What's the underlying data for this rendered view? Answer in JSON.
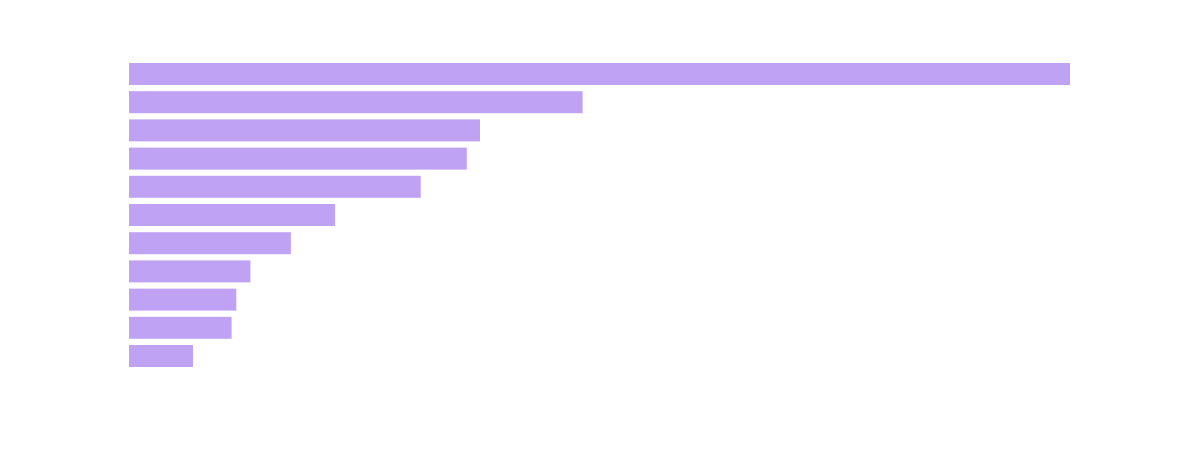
{
  "chart_data": {
    "type": "bar",
    "orientation": "horizontal",
    "sort": "descending",
    "bar_color": "#c0a2f5",
    "values": [
      100,
      48.2,
      37.3,
      35.9,
      31,
      21.9,
      17.2,
      12.9,
      11.4,
      10.9,
      6.8
    ],
    "xlim": [
      0,
      100
    ],
    "grid": false,
    "legend": "none"
  }
}
